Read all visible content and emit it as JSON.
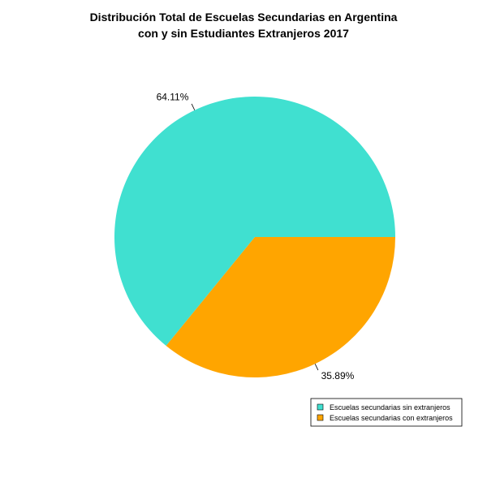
{
  "chart_data": {
    "type": "pie",
    "title_lines": [
      "Distribución Total de Escuelas Secundarias en Argentina",
      "con y sin Estudiantes Extranjeros 2017"
    ],
    "slices": [
      {
        "name": "Escuelas secundarias sin extranjeros",
        "value": 64.11,
        "label": "64.11%",
        "color": "#40E0D0"
      },
      {
        "name": "Escuelas secundarias con extranjeros",
        "value": 35.89,
        "label": "35.89%",
        "color": "#FFA500"
      }
    ],
    "legend_position": "bottom-right",
    "start_direction": "counter-clockwise from 3 o'clock"
  }
}
